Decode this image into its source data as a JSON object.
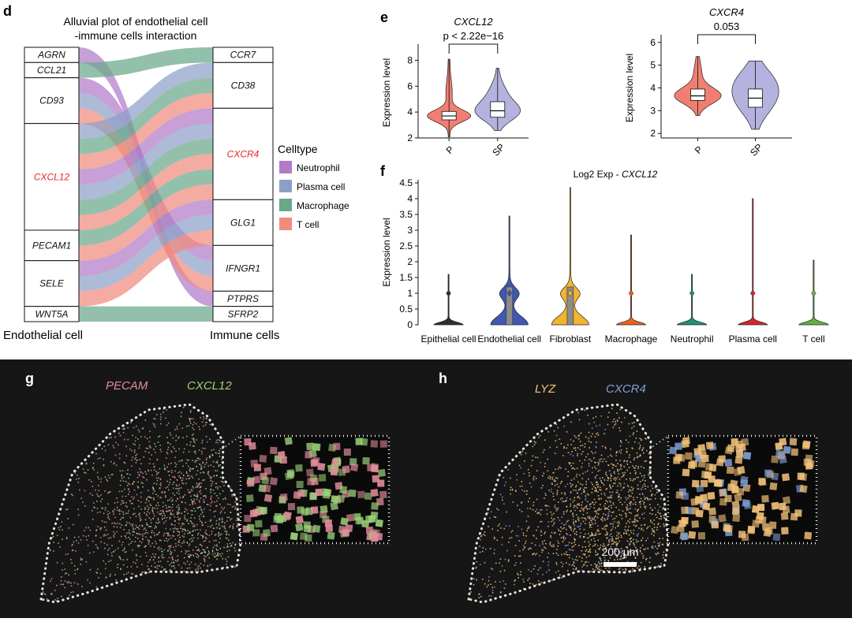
{
  "panel_letters": {
    "d": "d",
    "e": "e",
    "f": "f",
    "g": "g",
    "h": "h"
  },
  "colors": {
    "neutrophil": "#b07cc6",
    "plasma": "#8d9fc9",
    "macrophage": "#6aa88a",
    "tcell": "#f08b7d",
    "violin_p": "#f07f72",
    "violin_sp": "#b4b2de",
    "highlight": "#e8262a",
    "dark_bg": "#161616"
  },
  "chart_data": [
    {
      "type": "alluvial",
      "title_line1": "Alluvial plot of endothelial cell",
      "title_line2": "-immune cells interaction",
      "left_label": "Endothelial cell",
      "right_label": "Immune cells",
      "left_nodes": [
        "AGRN",
        "CCL21",
        "CD93",
        "CXCL12",
        "PECAM1",
        "SELE",
        "WNT5A"
      ],
      "left_weights": [
        1,
        1,
        3,
        7,
        2,
        3,
        1
      ],
      "right_nodes": [
        "CCR7",
        "CD38",
        "CXCR4",
        "GLG1",
        "IFNGR1",
        "PTPRS",
        "SFRP2"
      ],
      "right_weights": [
        1,
        3,
        6,
        3,
        3,
        1,
        1
      ],
      "highlight": [
        "CXCL12",
        "CXCR4"
      ],
      "legend_title": "Celltype",
      "legend": [
        "Neutrophil",
        "Plasma cell",
        "Macrophage",
        "T cell"
      ],
      "flows": [
        {
          "from": "AGRN",
          "to": "PTPRS",
          "cell": "Neutrophil",
          "w": 1
        },
        {
          "from": "CCL21",
          "to": "CCR7",
          "cell": "Macrophage",
          "w": 1
        },
        {
          "from": "CD93",
          "to": "IFNGR1",
          "cell": "Neutrophil",
          "w": 1
        },
        {
          "from": "CD93",
          "to": "IFNGR1",
          "cell": "Plasma cell",
          "w": 1
        },
        {
          "from": "CD93",
          "to": "IFNGR1",
          "cell": "T cell",
          "w": 1
        },
        {
          "from": "CXCL12",
          "to": "CD38",
          "cell": "Plasma cell",
          "w": 1
        },
        {
          "from": "CXCL12",
          "to": "CD38",
          "cell": "Macrophage",
          "w": 1
        },
        {
          "from": "CXCL12",
          "to": "CD38",
          "cell": "T cell",
          "w": 1
        },
        {
          "from": "CXCL12",
          "to": "CXCR4",
          "cell": "Neutrophil",
          "w": 1
        },
        {
          "from": "CXCL12",
          "to": "CXCR4",
          "cell": "Plasma cell",
          "w": 1
        },
        {
          "from": "CXCL12",
          "to": "CXCR4",
          "cell": "Macrophage",
          "w": 1
        },
        {
          "from": "CXCL12",
          "to": "CXCR4",
          "cell": "T cell",
          "w": 1
        },
        {
          "from": "PECAM1",
          "to": "CXCR4",
          "cell": "Macrophage",
          "w": 1
        },
        {
          "from": "PECAM1",
          "to": "CXCR4",
          "cell": "T cell",
          "w": 1
        },
        {
          "from": "SELE",
          "to": "GLG1",
          "cell": "Neutrophil",
          "w": 1
        },
        {
          "from": "SELE",
          "to": "GLG1",
          "cell": "Plasma cell",
          "w": 1
        },
        {
          "from": "SELE",
          "to": "GLG1",
          "cell": "T cell",
          "w": 1
        },
        {
          "from": "WNT5A",
          "to": "SFRP2",
          "cell": "Macrophage",
          "w": 1
        }
      ]
    },
    {
      "type": "violin",
      "title": "CXCL12",
      "pvalue": "p < 2.22e−16",
      "ylabel": "Expression level",
      "ylim": [
        2,
        9
      ],
      "yticks": [
        2,
        4,
        6,
        8
      ],
      "groups": [
        {
          "name": "P",
          "median": 3.7,
          "q1": 3.4,
          "q3": 4.05,
          "wmin": 2.1,
          "wmax": 7.0,
          "max": 8.1
        },
        {
          "name": "SP",
          "median": 4.1,
          "q1": 3.6,
          "q3": 4.8,
          "wmin": 2.6,
          "wmax": 7.0,
          "max": 7.4
        }
      ]
    },
    {
      "type": "violin",
      "title": "CXCR4",
      "pvalue": "0.053",
      "ylabel": "Expression level",
      "ylim": [
        1.8,
        6.2
      ],
      "yticks": [
        2,
        3,
        4,
        5,
        6
      ],
      "groups": [
        {
          "name": "P",
          "median": 3.65,
          "q1": 3.45,
          "q3": 3.95,
          "wmin": 2.8,
          "wmax": 4.6,
          "max": 5.4
        },
        {
          "name": "SP",
          "median": 3.55,
          "q1": 3.15,
          "q3": 3.95,
          "wmin": 2.2,
          "wmax": 5.2,
          "max": 5.2
        }
      ]
    },
    {
      "type": "violin",
      "title_prefix": "Log2 Exp - ",
      "title_gene": "CXCL12",
      "ylabel": "Expression level",
      "ylim": [
        0,
        4.6
      ],
      "yticks": [
        0,
        0.5,
        1,
        1.5,
        2,
        2.5,
        3,
        3.5,
        4,
        4.5
      ],
      "ytick_labels": [
        "0",
        "0.5",
        "1",
        "1.5",
        "2",
        "2.5",
        "3",
        "3.5",
        "4",
        "4.5"
      ],
      "categories": [
        "Epithelial cell",
        "Endothelial cell",
        "Fibroblast",
        "Macrophage",
        "Neutrophil",
        "Plasma cell",
        "T cell"
      ],
      "colors": [
        "#2f2f2f",
        "#3f58b3",
        "#f3b42f",
        "#e8611f",
        "#1f8f7a",
        "#d6242a",
        "#61b044"
      ],
      "max": [
        1.6,
        3.45,
        4.35,
        2.85,
        1.6,
        4.0,
        2.05
      ],
      "mean": [
        1.0,
        1.0,
        1.0,
        1.0,
        1.0,
        1.0,
        1.0
      ],
      "spread": [
        "low",
        "high",
        "high",
        "low",
        "low",
        "low",
        "low"
      ]
    },
    {
      "type": "spatial",
      "genes": [
        "PECAM",
        "CXCL12"
      ],
      "gene_colors": [
        "#e28c9a",
        "#9bd07a"
      ]
    },
    {
      "type": "spatial",
      "genes": [
        "LYZ",
        "CXCR4"
      ],
      "gene_colors": [
        "#f3c27a",
        "#7f9fd6"
      ],
      "scalebar": "200 µm"
    }
  ]
}
